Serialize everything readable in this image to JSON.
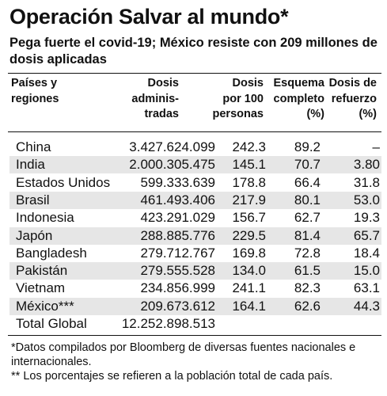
{
  "title": "Operación Salvar al mundo*",
  "subtitle": "Pega fuerte el covid-19; México resiste con 209 millones de dosis aplicadas",
  "columns": {
    "country": [
      "Países y",
      "regiones"
    ],
    "doses": [
      "Dosis",
      "adminis-",
      "tradas"
    ],
    "per100": [
      "Dosis",
      "por 100",
      "personas"
    ],
    "complete": [
      "Esquema",
      "completo",
      "(%)"
    ],
    "booster": [
      "Dosis de",
      "refuerzo",
      "(%)"
    ]
  },
  "chart_data": {
    "type": "table",
    "headers": [
      "Países y regiones",
      "Dosis adminis-tradas",
      "Dosis por 100 personas",
      "Esquema completo (%)",
      "Dosis de refuerzo (%)"
    ],
    "rows": [
      [
        "China",
        "3.427.624.099",
        "242.3",
        "89.2",
        "–"
      ],
      [
        "India",
        "2.000.305.475",
        "145.1",
        "70.7",
        "3.80"
      ],
      [
        "Estados Unidos",
        "599.333.639",
        "178.8",
        "66.4",
        "31.8"
      ],
      [
        "Brasil",
        "461.493.406",
        "217.9",
        "80.1",
        "53.0"
      ],
      [
        "Indonesia",
        "423.291.029",
        "156.7",
        "62.7",
        "19.3"
      ],
      [
        "Japón",
        "288.885.776",
        "229.5",
        "81.4",
        "65.7"
      ],
      [
        "Bangladesh",
        "279.712.767",
        "169.8",
        "72.8",
        "18.4"
      ],
      [
        "Pakistán",
        "279.555.528",
        "134.0",
        "61.5",
        "15.0"
      ],
      [
        "Vietnam",
        "234.856.999",
        "241.1",
        "82.3",
        "63.1"
      ],
      [
        "México***",
        "209.673.612",
        "164.1",
        "62.6",
        "44.3"
      ],
      [
        "Total Global",
        "12.252.898.513",
        "",
        "",
        ""
      ]
    ],
    "shaded_row_color": "#e6e6e6"
  },
  "footnotes": [
    "*Datos compilados por Bloomberg de diversas fuentes nacionales e internacionales.",
    "** Los porcentajes se refieren a la población total de cada país."
  ]
}
